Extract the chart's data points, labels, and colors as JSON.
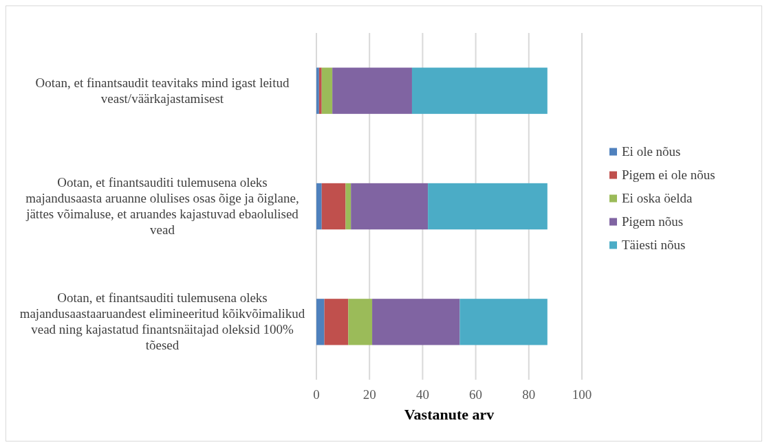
{
  "chart_data": {
    "type": "bar",
    "orientation": "horizontal",
    "stacked": true,
    "xlabel": "Vastanute arv",
    "categories": [
      "Ootan, et finantsaudit teavitaks mind igast leitud veast/väärkajastamisest",
      "Ootan, et finantsauditi tulemusena oleks majandusaasta aruanne olulises osas õige ja õiglane, jättes võimaluse, et aruandes kajastuvad ebaolulised vead",
      "Ootan, et finantsauditi tulemusena oleks majandusaastaaruandest elimineeritud kõikvõimalikud vead ning kajastatud finantsnäitajad oleksid 100% tõesed"
    ],
    "series": [
      {
        "name": "Ei ole nõus",
        "color": "#4f81bd",
        "values": [
          1,
          2,
          3
        ]
      },
      {
        "name": "Pigem ei ole nõus",
        "color": "#c0504d",
        "values": [
          1,
          9,
          9
        ]
      },
      {
        "name": "Ei oska öelda",
        "color": "#9bbb59",
        "values": [
          4,
          2,
          9
        ]
      },
      {
        "name": "Pigem nõus",
        "color": "#8064a2",
        "values": [
          30,
          29,
          33
        ]
      },
      {
        "name": "Täiesti nõus",
        "color": "#4bacc6",
        "values": [
          51,
          45,
          33
        ]
      }
    ],
    "xlim": [
      0,
      100
    ],
    "xticks": [
      0,
      20,
      40,
      60,
      80,
      100
    ],
    "grid": "x",
    "legend": "right"
  }
}
